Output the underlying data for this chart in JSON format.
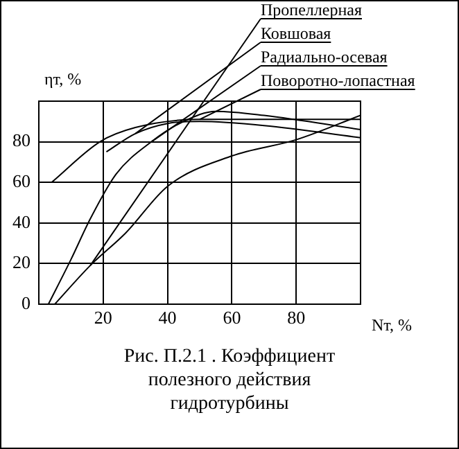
{
  "chart_data": {
    "type": "line",
    "xlabel": "Nт, %",
    "ylabel": "ηт, %",
    "xlim": [
      0,
      100
    ],
    "ylim": [
      0,
      100
    ],
    "xticks": [
      20,
      40,
      60,
      80
    ],
    "yticks": [
      0,
      20,
      40,
      60,
      80
    ],
    "grid": true,
    "legend": "top right",
    "series": [
      {
        "name": "Пропеллерная",
        "color": "#000000",
        "x": [
          5,
          16,
          27,
          40,
          60,
          80,
          100
        ],
        "values": [
          0,
          19,
          35,
          58,
          73,
          81,
          93
        ]
      },
      {
        "name": "Ковшовая",
        "color": "#000000",
        "x": [
          21,
          30,
          40,
          50,
          70,
          100
        ],
        "values": [
          75,
          84,
          89,
          90,
          88,
          82
        ]
      },
      {
        "name": "Радиально-осевая",
        "color": "#000000",
        "x": [
          3,
          10,
          16,
          24,
          35,
          45,
          55,
          70,
          100
        ],
        "values": [
          0,
          22,
          42,
          64,
          80,
          90,
          95,
          93,
          86
        ]
      },
      {
        "name": "Поворотно-лопастная",
        "color": "#000000",
        "x": [
          4,
          19,
          30,
          50,
          70,
          100
        ],
        "values": [
          60,
          80,
          87,
          91,
          91,
          91
        ]
      }
    ],
    "annotations": [
      "Рис. П.2.1 . Коэффициент полезного действия гидротурбины"
    ]
  }
}
